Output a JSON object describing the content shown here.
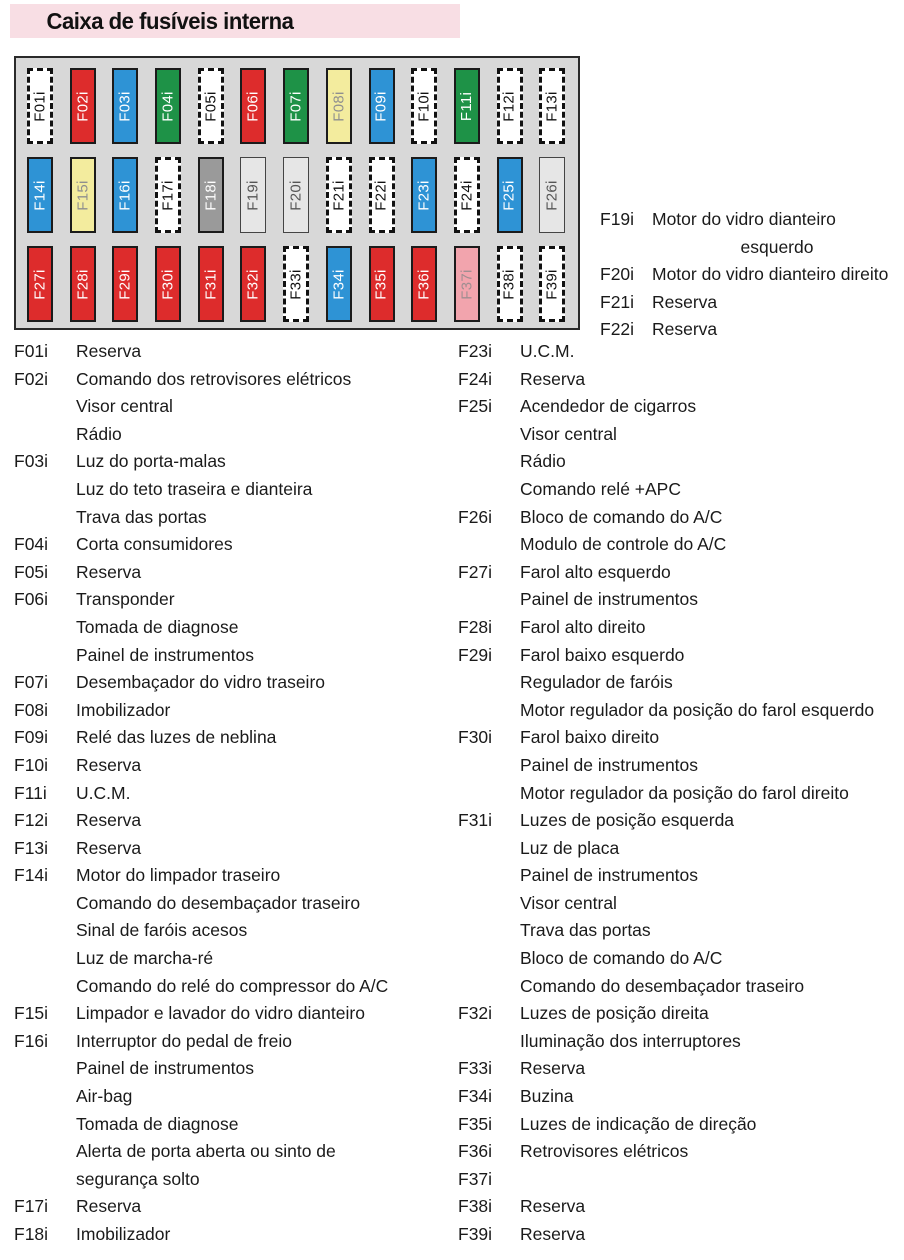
{
  "title": "Caixa de fusíveis interna",
  "colors": {
    "banner_bg": "#f8dee4",
    "box_bg": "#d8d8d8",
    "fuse_red": "#dd2c2c",
    "fuse_blue": "#2e93d5",
    "fuse_green": "#1e9247",
    "fuse_yellow": "#f3ec9e",
    "fuse_gray": "#9a9a9a",
    "fuse_pink": "#f2a4ad",
    "fuse_lightgray": "#e6e6e6",
    "fuse_reserve": "#ffffff"
  },
  "fusebox": {
    "rows": [
      [
        {
          "id": "F01i",
          "type": "reserve"
        },
        {
          "id": "F02i",
          "type": "red"
        },
        {
          "id": "F03i",
          "type": "blue"
        },
        {
          "id": "F04i",
          "type": "green"
        },
        {
          "id": "F05i",
          "type": "reserve"
        },
        {
          "id": "F06i",
          "type": "red"
        },
        {
          "id": "F07i",
          "type": "green"
        },
        {
          "id": "F08i",
          "type": "yellow"
        },
        {
          "id": "F09i",
          "type": "blue"
        },
        {
          "id": "F10i",
          "type": "reserve"
        },
        {
          "id": "F11i",
          "type": "green"
        },
        {
          "id": "F12i",
          "type": "reserve"
        },
        {
          "id": "F13i",
          "type": "reserve"
        }
      ],
      [
        {
          "id": "F14i",
          "type": "blue"
        },
        {
          "id": "F15i",
          "type": "yellow"
        },
        {
          "id": "F16i",
          "type": "blue"
        },
        {
          "id": "F17i",
          "type": "reserve"
        },
        {
          "id": "F18i",
          "type": "gray"
        },
        {
          "id": "F19i",
          "type": "lightgray"
        },
        {
          "id": "F20i",
          "type": "lightgray"
        },
        {
          "id": "F21i",
          "type": "reserve"
        },
        {
          "id": "F22i",
          "type": "reserve"
        },
        {
          "id": "F23i",
          "type": "blue"
        },
        {
          "id": "F24i",
          "type": "reserve"
        },
        {
          "id": "F25i",
          "type": "blue"
        },
        {
          "id": "F26i",
          "type": "lightgray"
        }
      ],
      [
        {
          "id": "F27i",
          "type": "red"
        },
        {
          "id": "F28i",
          "type": "red"
        },
        {
          "id": "F29i",
          "type": "red"
        },
        {
          "id": "F30i",
          "type": "red"
        },
        {
          "id": "F31i",
          "type": "red"
        },
        {
          "id": "F32i",
          "type": "red"
        },
        {
          "id": "F33i",
          "type": "reserve"
        },
        {
          "id": "F34i",
          "type": "blue"
        },
        {
          "id": "F35i",
          "type": "red"
        },
        {
          "id": "F36i",
          "type": "red"
        },
        {
          "id": "F37i",
          "type": "pink"
        },
        {
          "id": "F38i",
          "type": "reserve"
        },
        {
          "id": "F39i",
          "type": "reserve"
        }
      ]
    ]
  },
  "side_legend": [
    {
      "id": "F19i",
      "lines": [
        "Motor do vidro dianteiro",
        "esquerdo"
      ]
    },
    {
      "id": "F20i",
      "lines": [
        "Motor do vidro dianteiro direito"
      ]
    },
    {
      "id": "F21i",
      "lines": [
        "Reserva"
      ]
    },
    {
      "id": "F22i",
      "lines": [
        "Reserva"
      ]
    }
  ],
  "legend_left": [
    {
      "id": "F01i",
      "lines": [
        "Reserva"
      ]
    },
    {
      "id": "F02i",
      "lines": [
        "Comando dos retrovisores elétricos",
        "Visor central",
        "Rádio"
      ]
    },
    {
      "id": "F03i",
      "lines": [
        "Luz do porta-malas",
        "Luz do teto traseira e dianteira",
        "Trava das portas"
      ]
    },
    {
      "id": "F04i",
      "lines": [
        "Corta consumidores"
      ]
    },
    {
      "id": "F05i",
      "lines": [
        "Reserva"
      ]
    },
    {
      "id": "F06i",
      "lines": [
        "Transponder",
        "Tomada de diagnose",
        "Painel de instrumentos"
      ]
    },
    {
      "id": "F07i",
      "lines": [
        "Desembaçador do vidro traseiro"
      ]
    },
    {
      "id": "F08i",
      "lines": [
        "Imobilizador"
      ]
    },
    {
      "id": "F09i",
      "lines": [
        "Relé das luzes de neblina"
      ]
    },
    {
      "id": "F10i",
      "lines": [
        "Reserva"
      ]
    },
    {
      "id": "F11i",
      "lines": [
        "U.C.M."
      ]
    },
    {
      "id": "F12i",
      "lines": [
        "Reserva"
      ]
    },
    {
      "id": "F13i",
      "lines": [
        "Reserva"
      ]
    },
    {
      "id": "F14i",
      "lines": [
        "Motor do limpador traseiro",
        "Comando do desembaçador traseiro",
        "Sinal de faróis acesos",
        "Luz de marcha-ré",
        "Comando do relé do compressor do A/C"
      ]
    },
    {
      "id": "F15i",
      "lines": [
        "Limpador e lavador do vidro dianteiro"
      ]
    },
    {
      "id": "F16i",
      "lines": [
        "Interruptor do pedal de freio",
        "Painel de instrumentos",
        "Air-bag",
        "Tomada de diagnose",
        "Alerta de porta aberta ou sinto de",
        "segurança solto"
      ]
    },
    {
      "id": "F17i",
      "lines": [
        "Reserva"
      ]
    },
    {
      "id": "F18i",
      "lines": [
        "Imobilizador"
      ]
    }
  ],
  "legend_right": [
    {
      "id": "F23i",
      "lines": [
        "U.C.M."
      ]
    },
    {
      "id": "F24i",
      "lines": [
        "Reserva"
      ]
    },
    {
      "id": "F25i",
      "lines": [
        "Acendedor de cigarros",
        "Visor central",
        "Rádio",
        "Comando relé +APC"
      ]
    },
    {
      "id": "F26i",
      "lines": [
        "Bloco de comando do A/C",
        "Modulo de controle do A/C"
      ]
    },
    {
      "id": "F27i",
      "lines": [
        "Farol alto esquerdo",
        "Painel de instrumentos"
      ]
    },
    {
      "id": "F28i",
      "lines": [
        "Farol alto direito"
      ]
    },
    {
      "id": "F29i",
      "lines": [
        "Farol baixo esquerdo",
        "Regulador de faróis",
        "Motor regulador da posição do farol esquerdo"
      ]
    },
    {
      "id": "F30i",
      "lines": [
        "Farol baixo direito",
        "Painel de instrumentos",
        "Motor regulador da posição do farol direito"
      ]
    },
    {
      "id": "F31i",
      "lines": [
        "Luzes de posição esquerda",
        "Luz de placa",
        "Painel de instrumentos",
        "Visor central",
        "Trava das portas",
        "Bloco de comando do A/C",
        "Comando do desembaçador traseiro"
      ]
    },
    {
      "id": "F32i",
      "lines": [
        "Luzes de posição direita",
        "Iluminação dos interruptores"
      ]
    },
    {
      "id": "F33i",
      "lines": [
        "Reserva"
      ]
    },
    {
      "id": "F34i",
      "lines": [
        "Buzina"
      ]
    },
    {
      "id": "F35i",
      "lines": [
        "Luzes de indicação de direção"
      ]
    },
    {
      "id": "F36i",
      "lines": [
        "Retrovisores elétricos"
      ]
    },
    {
      "id": "F37i",
      "lines": [
        ""
      ]
    },
    {
      "id": "F38i",
      "lines": [
        "Reserva"
      ]
    },
    {
      "id": "F39i",
      "lines": [
        "Reserva"
      ]
    }
  ]
}
